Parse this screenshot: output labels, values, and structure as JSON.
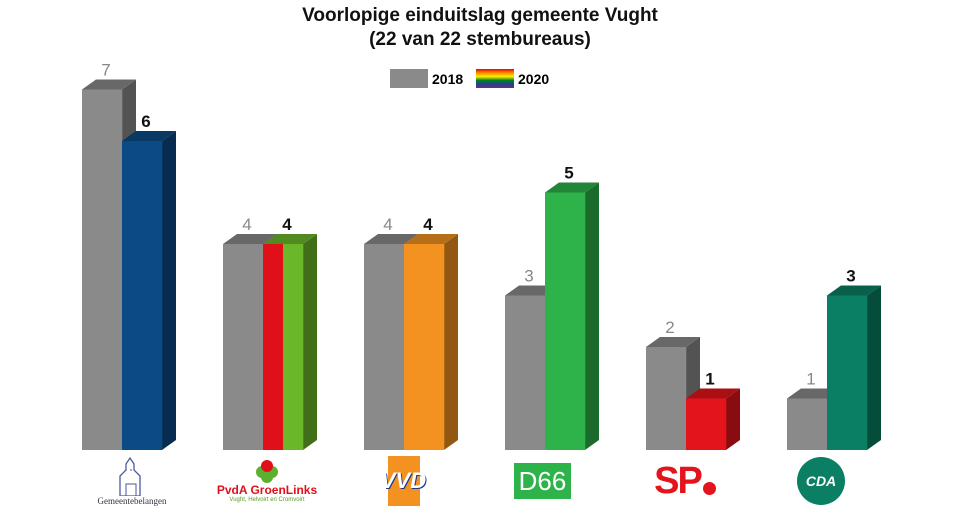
{
  "chart_data": {
    "type": "bar",
    "title": "Voorlopige einduitslag gemeente Vught",
    "subtitle": "(22 van 22 stembureaus)",
    "categories": [
      "Gemeentebelangen",
      "PvdA GroenLinks",
      "VVD",
      "D66",
      "SP",
      "CDA"
    ],
    "series": [
      {
        "name": "2018",
        "values": [
          7,
          4,
          4,
          3,
          2,
          1
        ],
        "color": "#8a8a8a"
      },
      {
        "name": "2020",
        "values": [
          6,
          4,
          4,
          5,
          1,
          3
        ],
        "colors": [
          [
            "#0b4a85"
          ],
          [
            "#e0101a",
            "#6ab82a"
          ],
          [
            "#f39220"
          ],
          [
            "#2db34a"
          ],
          [
            "#e3141b"
          ],
          [
            "#0a7f63"
          ]
        ]
      }
    ],
    "legend": "top-center",
    "grid": false,
    "ylim": [
      0,
      7
    ]
  },
  "logos": {
    "gemeentebelangen": "Gemeentebelangen",
    "pvda_gl": "PvdA GroenLinks",
    "pvda_gl_sub": "Vught, Helvoirt en Cromvoirt",
    "vvd": "VVD",
    "d66": "D66",
    "sp": "SP",
    "cda": "CDA"
  }
}
